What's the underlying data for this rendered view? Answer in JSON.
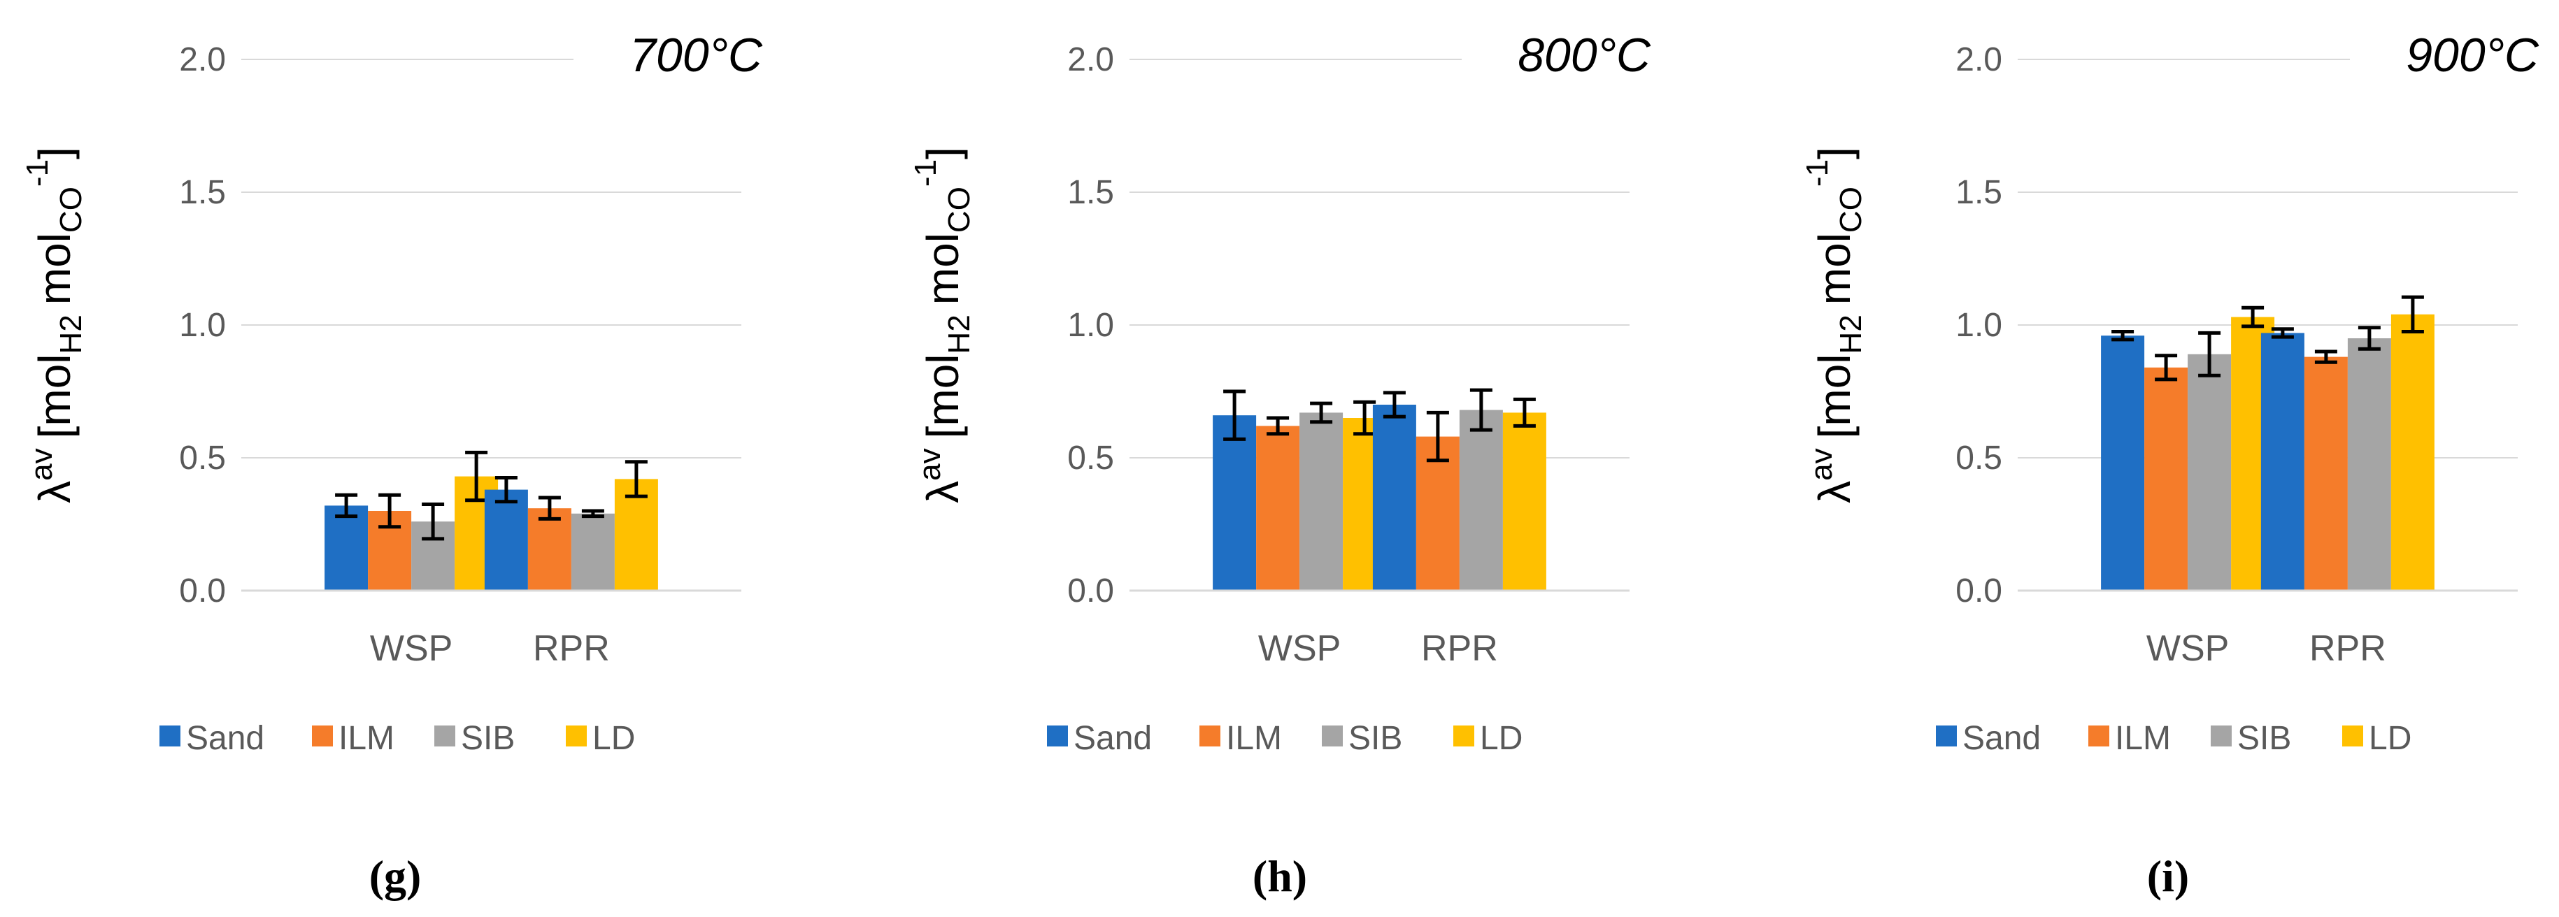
{
  "y_axis_label": {
    "symbol": "λ",
    "superscript": "av",
    "bracket_open": "[",
    "mol1": "mol",
    "sub1": "H2",
    "mol2": "mol",
    "sub2": "CO",
    "sup2": "-1",
    "bracket_close": "]"
  },
  "colors": {
    "Sand": "#1f6fc4",
    "ILM": "#f57c2a",
    "SIB": "#a5a5a5",
    "LD": "#ffc000"
  },
  "chart_data": [
    {
      "type": "bar",
      "title": "700°C",
      "panel_label": "(g)",
      "categories": [
        "WSP",
        "RPR"
      ],
      "ylim": [
        0,
        2
      ],
      "yticks": [
        "0.0",
        "0.5",
        "1.0",
        "1.5",
        "2.0"
      ],
      "legend": [
        "Sand",
        "ILM",
        "SIB",
        "LD"
      ],
      "series": [
        {
          "name": "Sand",
          "values": [
            0.32,
            0.38
          ],
          "errors": [
            0.04,
            0.045
          ]
        },
        {
          "name": "ILM",
          "values": [
            0.3,
            0.31
          ],
          "errors": [
            0.06,
            0.04
          ]
        },
        {
          "name": "SIB",
          "values": [
            0.26,
            0.29
          ],
          "errors": [
            0.065,
            0.01
          ]
        },
        {
          "name": "LD",
          "values": [
            0.43,
            0.42
          ],
          "errors": [
            0.09,
            0.065
          ]
        }
      ]
    },
    {
      "type": "bar",
      "title": "800°C",
      "panel_label": "(h)",
      "categories": [
        "WSP",
        "RPR"
      ],
      "ylim": [
        0,
        2
      ],
      "yticks": [
        "0.0",
        "0.5",
        "1.0",
        "1.5",
        "2.0"
      ],
      "legend": [
        "Sand",
        "ILM",
        "SIB",
        "LD"
      ],
      "series": [
        {
          "name": "Sand",
          "values": [
            0.66,
            0.7
          ],
          "errors": [
            0.09,
            0.045
          ]
        },
        {
          "name": "ILM",
          "values": [
            0.62,
            0.58
          ],
          "errors": [
            0.03,
            0.09
          ]
        },
        {
          "name": "SIB",
          "values": [
            0.67,
            0.68
          ],
          "errors": [
            0.035,
            0.075
          ]
        },
        {
          "name": "LD",
          "values": [
            0.65,
            0.67
          ],
          "errors": [
            0.06,
            0.05
          ]
        }
      ]
    },
    {
      "type": "bar",
      "title": "900°C",
      "panel_label": "(i)",
      "categories": [
        "WSP",
        "RPR"
      ],
      "ylim": [
        0,
        2
      ],
      "yticks": [
        "0.0",
        "0.5",
        "1.0",
        "1.5",
        "2.0"
      ],
      "legend": [
        "Sand",
        "ILM",
        "SIB",
        "LD"
      ],
      "series": [
        {
          "name": "Sand",
          "values": [
            0.96,
            0.97
          ],
          "errors": [
            0.015,
            0.015
          ]
        },
        {
          "name": "ILM",
          "values": [
            0.84,
            0.88
          ],
          "errors": [
            0.045,
            0.02
          ]
        },
        {
          "name": "SIB",
          "values": [
            0.89,
            0.95
          ],
          "errors": [
            0.08,
            0.04
          ]
        },
        {
          "name": "LD",
          "values": [
            1.03,
            1.04
          ],
          "errors": [
            0.035,
            0.065
          ]
        }
      ]
    }
  ]
}
